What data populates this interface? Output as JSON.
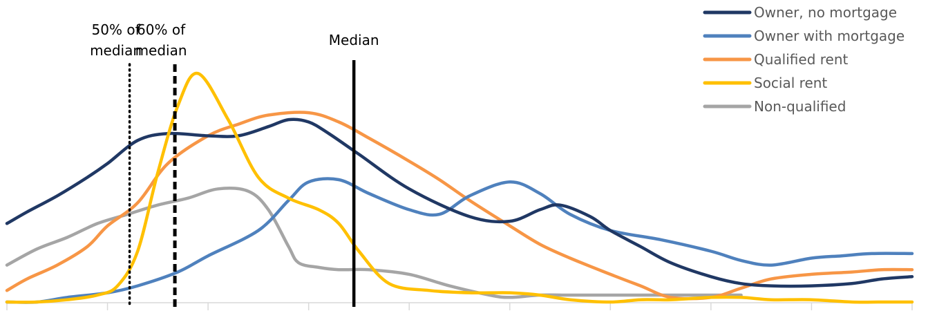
{
  "chart_data": {
    "type": "line",
    "title": "",
    "xlabel": "",
    "ylabel": "",
    "x_categories": 9,
    "grid": false,
    "legend_position": "top-right",
    "series": [
      {
        "name": "Owner, no mortgage",
        "color": "#203864",
        "x": [
          0,
          0.2,
          0.5,
          0.8,
          1.0,
          1.3,
          1.6,
          2.0,
          2.3,
          2.6,
          2.8,
          3.0,
          3.2,
          3.5,
          4.0,
          4.6,
          5.0,
          5.3,
          5.5,
          5.8,
          6.0,
          6.3,
          6.6,
          7.0,
          7.3,
          7.6,
          8.0,
          8.4,
          8.7,
          9.0
        ],
        "y": [
          0.34,
          0.39,
          0.46,
          0.54,
          0.6,
          0.7,
          0.73,
          0.72,
          0.72,
          0.76,
          0.79,
          0.78,
          0.73,
          0.64,
          0.49,
          0.37,
          0.35,
          0.4,
          0.42,
          0.37,
          0.31,
          0.24,
          0.17,
          0.11,
          0.08,
          0.07,
          0.07,
          0.08,
          0.1,
          0.11
        ]
      },
      {
        "name": "Owner with mortgage",
        "color": "#4F81BD",
        "x": [
          0,
          0.3,
          0.6,
          1.0,
          1.3,
          1.7,
          2.0,
          2.5,
          2.8,
          3.0,
          3.3,
          3.6,
          4.0,
          4.3,
          4.6,
          5.0,
          5.3,
          5.6,
          6.0,
          6.5,
          7.0,
          7.3,
          7.6,
          8.0,
          8.3,
          8.6,
          9.0
        ],
        "y": [
          0.0,
          0.0,
          0.02,
          0.04,
          0.07,
          0.13,
          0.2,
          0.31,
          0.44,
          0.52,
          0.53,
          0.47,
          0.4,
          0.38,
          0.46,
          0.52,
          0.47,
          0.38,
          0.31,
          0.27,
          0.22,
          0.18,
          0.16,
          0.19,
          0.2,
          0.21,
          0.21
        ]
      },
      {
        "name": "Qualified rent",
        "color": "#F79646",
        "x": [
          0,
          0.2,
          0.5,
          0.8,
          1.0,
          1.3,
          1.6,
          2.0,
          2.3,
          2.6,
          3.0,
          3.3,
          3.6,
          4.0,
          4.3,
          4.6,
          5.0,
          5.3,
          5.6,
          6.0,
          6.3,
          6.6,
          7.0,
          7.3,
          7.6,
          8.0,
          8.4,
          8.7,
          9.0
        ],
        "y": [
          0.05,
          0.1,
          0.16,
          0.24,
          0.33,
          0.43,
          0.6,
          0.72,
          0.77,
          0.81,
          0.82,
          0.78,
          0.71,
          0.61,
          0.53,
          0.44,
          0.33,
          0.25,
          0.19,
          0.12,
          0.07,
          0.02,
          0.02,
          0.06,
          0.1,
          0.12,
          0.13,
          0.14,
          0.14
        ]
      },
      {
        "name": "Social rent",
        "color": "#FFC000",
        "x": [
          0,
          0.3,
          0.6,
          0.9,
          1.1,
          1.3,
          1.5,
          1.7,
          1.9,
          2.2,
          2.5,
          2.8,
          3.1,
          3.3,
          3.5,
          3.8,
          4.2,
          4.6,
          5.0,
          5.3,
          5.6,
          6.0,
          6.3,
          6.6,
          7.0,
          7.3,
          7.6,
          8.0,
          8.4,
          8.7,
          9.0
        ],
        "y": [
          0.0,
          0.0,
          0.01,
          0.03,
          0.07,
          0.22,
          0.56,
          0.85,
          0.99,
          0.79,
          0.54,
          0.45,
          0.4,
          0.34,
          0.22,
          0.08,
          0.05,
          0.04,
          0.04,
          0.03,
          0.01,
          0.0,
          0.01,
          0.01,
          0.02,
          0.02,
          0.01,
          0.01,
          0.0,
          0.0,
          0.0
        ]
      },
      {
        "name": "Non-qualified",
        "color": "#A5A5A5",
        "x": [
          0,
          0.3,
          0.6,
          0.9,
          1.2,
          1.5,
          1.8,
          2.1,
          2.4,
          2.6,
          2.8,
          2.9,
          3.1,
          3.3,
          3.6,
          4.0,
          4.4,
          4.8,
          5.0,
          5.3,
          5.6,
          6.0,
          6.5,
          7.0,
          7.3
        ],
        "y": [
          0.16,
          0.23,
          0.28,
          0.34,
          0.38,
          0.42,
          0.45,
          0.49,
          0.48,
          0.4,
          0.24,
          0.17,
          0.15,
          0.14,
          0.14,
          0.12,
          0.07,
          0.03,
          0.02,
          0.03,
          0.03,
          0.03,
          0.03,
          0.03,
          0.03
        ]
      }
    ],
    "reference_lines": [
      {
        "label_line1": "50% of",
        "label_line2": "median",
        "x": 1.22,
        "style": "dotted"
      },
      {
        "label_line1": "60% of",
        "label_line2": "median",
        "x": 1.67,
        "style": "dashed"
      },
      {
        "label_line1": "Median",
        "label_line2": "",
        "x": 3.45,
        "style": "solid"
      }
    ]
  }
}
